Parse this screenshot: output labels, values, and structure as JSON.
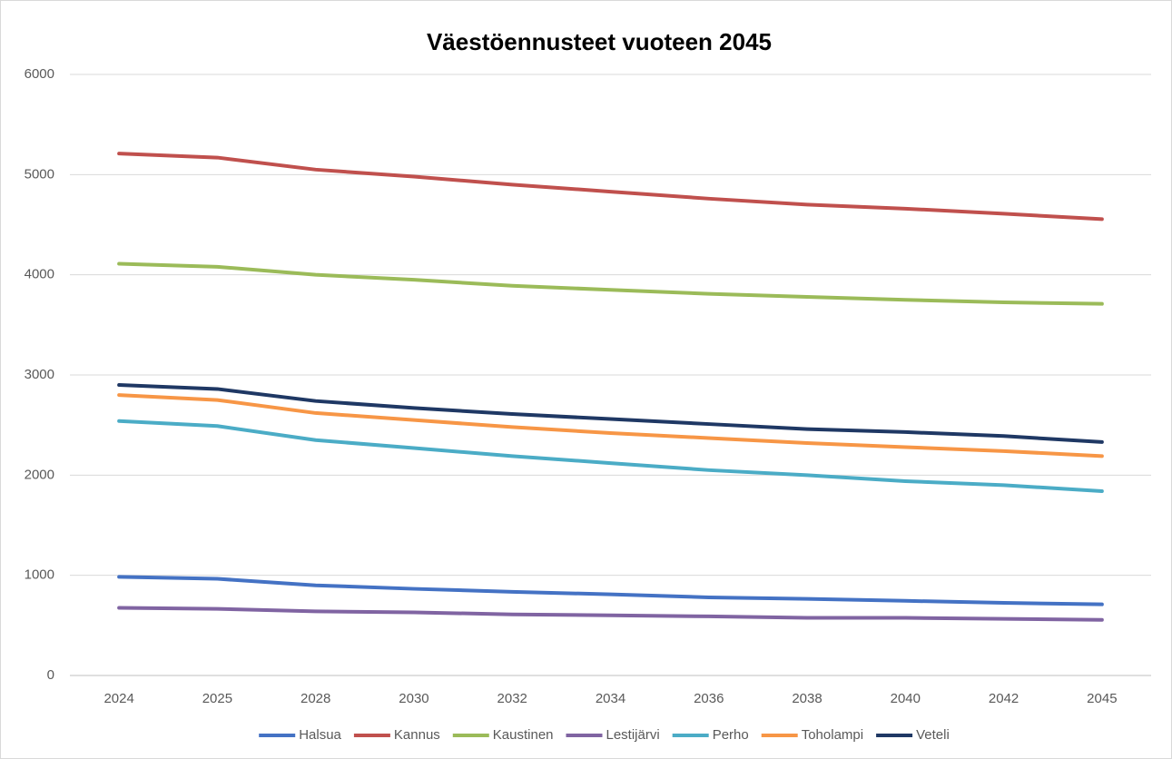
{
  "chart_data": {
    "type": "line",
    "title": "Väestöennusteet vuoteen 2045",
    "categories": [
      "2024",
      "2025",
      "2028",
      "2030",
      "2032",
      "2034",
      "2036",
      "2038",
      "2040",
      "2042",
      "2045"
    ],
    "series": [
      {
        "name": "Halsua",
        "color": "#4472c4",
        "values": [
          985,
          965,
          900,
          865,
          835,
          810,
          780,
          765,
          745,
          725,
          710
        ]
      },
      {
        "name": "Kannus",
        "color": "#c0504d",
        "values": [
          5210,
          5170,
          5050,
          4980,
          4900,
          4830,
          4760,
          4700,
          4660,
          4610,
          4555
        ]
      },
      {
        "name": "Kaustinen",
        "color": "#9bbb59",
        "values": [
          4110,
          4080,
          4000,
          3950,
          3890,
          3850,
          3810,
          3780,
          3750,
          3725,
          3710
        ]
      },
      {
        "name": "Lestijärvi",
        "color": "#8064a2",
        "values": [
          675,
          665,
          640,
          630,
          610,
          600,
          590,
          575,
          575,
          565,
          555
        ]
      },
      {
        "name": "Perho",
        "color": "#4bacc6",
        "values": [
          2540,
          2490,
          2350,
          2270,
          2190,
          2120,
          2050,
          2000,
          1940,
          1900,
          1840
        ]
      },
      {
        "name": "Toholampi",
        "color": "#f79646",
        "values": [
          2800,
          2750,
          2620,
          2550,
          2480,
          2420,
          2370,
          2320,
          2280,
          2240,
          2190
        ]
      },
      {
        "name": "Veteli",
        "color": "#1f3864",
        "values": [
          2900,
          2860,
          2740,
          2670,
          2610,
          2560,
          2510,
          2460,
          2430,
          2390,
          2330
        ]
      }
    ],
    "ylim": [
      0,
      6000
    ],
    "yticks": [
      0,
      1000,
      2000,
      3000,
      4000,
      5000,
      6000
    ],
    "grid": true,
    "legend": "bottom"
  }
}
